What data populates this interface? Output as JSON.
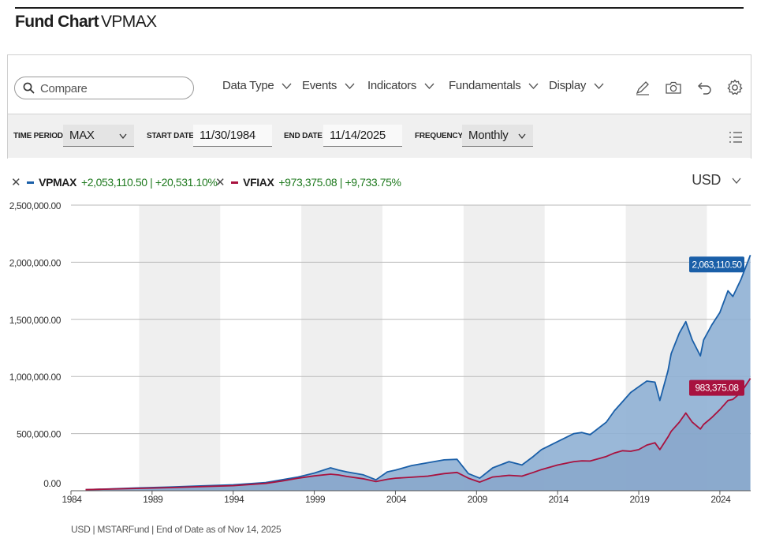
{
  "header": {
    "title_bold": "Fund Chart",
    "title_ticker": "VPMAX"
  },
  "toolbar": {
    "search_placeholder": "Compare",
    "menus": [
      "Data Type",
      "Events",
      "Indicators",
      "Fundamentals",
      "Display"
    ],
    "tools": [
      "pencil-icon",
      "camera-icon",
      "undo-icon",
      "gear-icon"
    ]
  },
  "filters": {
    "time_period_label": "TIME PERIOD",
    "time_period_value": "MAX",
    "start_date_label": "START DATE",
    "start_date_value": "11/30/1984",
    "end_date_label": "END DATE",
    "end_date_value": "11/14/2025",
    "frequency_label": "FREQUENCY",
    "frequency_value": "Monthly"
  },
  "legend": {
    "items": [
      {
        "name": "VPMAX",
        "change": "+2,053,110.50 | +20,531.10%",
        "color": "#1a5fa8"
      },
      {
        "name": "VFIAX",
        "change": "+973,375.08 | +9,733.75%",
        "color": "#a8123f"
      }
    ],
    "currency": "USD"
  },
  "chart_data": {
    "type": "area",
    "ylim": [
      0,
      2500000
    ],
    "xlim": [
      1984.0,
      2025.9
    ],
    "y_ticks": [
      0,
      500000,
      1000000,
      1500000,
      2000000,
      2500000
    ],
    "y_tick_labels": [
      "0.00",
      "500,000.00",
      "1,000,000.00",
      "1,500,000.00",
      "2,000,000.00",
      "2,500,000.00"
    ],
    "x_ticks": [
      1984,
      1989,
      1994,
      1999,
      2004,
      2009,
      2014,
      2019,
      2024
    ],
    "x_tick_labels": [
      "1984",
      "1989",
      "1994",
      "1999",
      "2004",
      "2009",
      "2014",
      "2019",
      "2024"
    ],
    "shaded_bands": [
      [
        1988.2,
        1993.2
      ],
      [
        1998.2,
        2003.2
      ],
      [
        2008.2,
        2013.2
      ],
      [
        2018.2,
        2023.2
      ]
    ],
    "series": [
      {
        "name": "VPMAX",
        "color": "#1a5fa8",
        "fill": "#8fb0d4",
        "end_label": "2,063,110.50",
        "x": [
          1984.9,
          1986,
          1988,
          1990,
          1992,
          1994,
          1996,
          1997,
          1998,
          1999,
          2000,
          2000.5,
          2001,
          2002,
          2002.8,
          2003.5,
          2004,
          2005,
          2006,
          2007,
          2007.8,
          2008.5,
          2009.2,
          2010,
          2011,
          2011.8,
          2012.5,
          2013,
          2014,
          2015,
          2015.5,
          2016,
          2017,
          2017.5,
          2018,
          2018.5,
          2019,
          2019.5,
          2020,
          2020.3,
          2020.8,
          2021,
          2021.5,
          2021.9,
          2022.3,
          2022.8,
          2023,
          2023.5,
          2024,
          2024.5,
          2024.8,
          2025.3,
          2025.88
        ],
        "values": [
          10000,
          14000,
          24000,
          32000,
          42000,
          52000,
          72000,
          95000,
          120000,
          155000,
          200000,
          180000,
          165000,
          140000,
          95000,
          165000,
          180000,
          220000,
          245000,
          270000,
          275000,
          150000,
          110000,
          200000,
          255000,
          225000,
          300000,
          360000,
          430000,
          500000,
          510000,
          490000,
          600000,
          700000,
          780000,
          860000,
          910000,
          960000,
          950000,
          790000,
          1050000,
          1200000,
          1380000,
          1480000,
          1320000,
          1180000,
          1320000,
          1450000,
          1560000,
          1750000,
          1700000,
          1850000,
          2063110.5
        ]
      },
      {
        "name": "VFIAX",
        "color": "#a8123f",
        "fill": "#7f9fc4",
        "end_label": "983,375.08",
        "x": [
          1984.9,
          1986,
          1988,
          1990,
          1992,
          1994,
          1996,
          1997,
          1998,
          1999,
          2000,
          2000.5,
          2001,
          2002,
          2002.8,
          2003.5,
          2004,
          2005,
          2006,
          2007,
          2007.8,
          2008.5,
          2009.2,
          2010,
          2011,
          2011.8,
          2012.5,
          2013,
          2014,
          2015,
          2015.5,
          2016,
          2017,
          2017.5,
          2018,
          2018.5,
          2019,
          2019.5,
          2020,
          2020.3,
          2020.8,
          2021,
          2021.5,
          2021.9,
          2022.3,
          2022.8,
          2023,
          2023.5,
          2024,
          2024.5,
          2024.8,
          2025.3,
          2025.88
        ],
        "values": [
          10000,
          13000,
          20000,
          27000,
          36000,
          44000,
          64000,
          85000,
          110000,
          130000,
          145000,
          138000,
          125000,
          105000,
          80000,
          100000,
          110000,
          118000,
          128000,
          150000,
          160000,
          110000,
          75000,
          120000,
          135000,
          128000,
          160000,
          185000,
          225000,
          255000,
          262000,
          260000,
          300000,
          330000,
          350000,
          345000,
          360000,
          400000,
          420000,
          360000,
          470000,
          520000,
          600000,
          680000,
          600000,
          540000,
          580000,
          640000,
          710000,
          790000,
          800000,
          860000,
          983375.08
        ]
      }
    ]
  },
  "footnote": "USD | MSTARFund | End of Date as of Nov 14, 2025"
}
